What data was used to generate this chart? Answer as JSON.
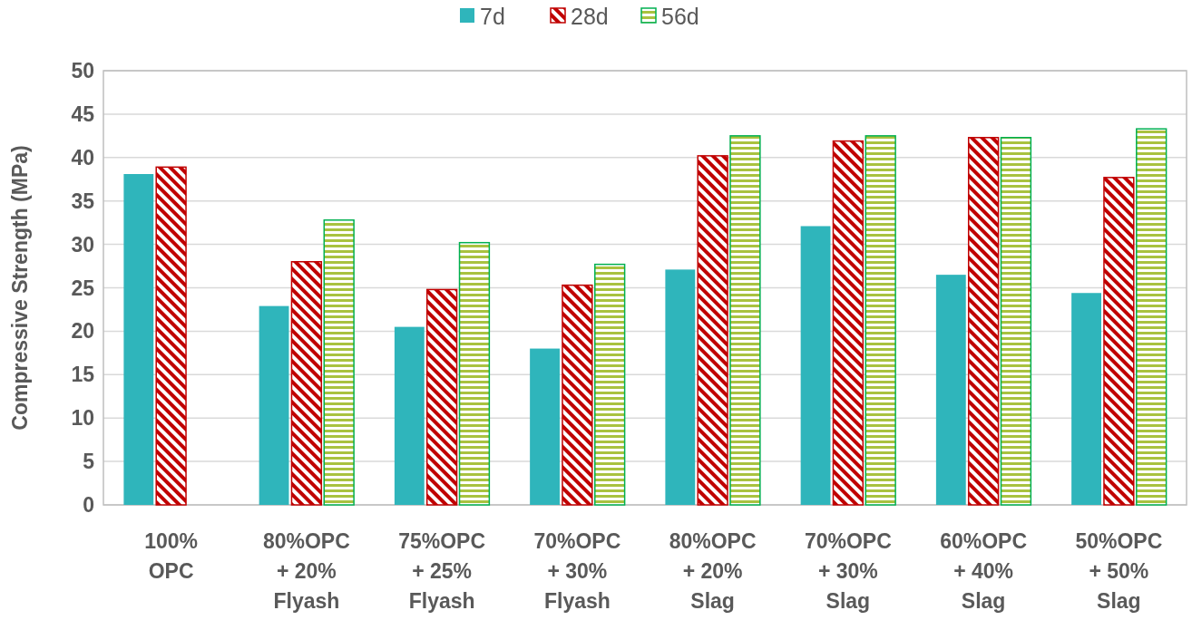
{
  "chart_data": {
    "type": "bar",
    "ylabel": "Compressive Strength (MPa)",
    "categories": [
      "100%\nOPC",
      "80%OPC\n+ 20%\nFlyash",
      "75%OPC\n+ 25%\nFlyash",
      "70%OPC\n+ 30%\nFlyash",
      "80%OPC\n+ 20%\nSlag",
      "70%OPC\n+ 30%\nSlag",
      "60%OPC\n+ 40%\nSlag",
      "50%OPC\n+ 50%\nSlag"
    ],
    "series": [
      {
        "name": "7d",
        "color": "#2fb5bb",
        "values": [
          38.1,
          22.9,
          20.5,
          18.0,
          27.1,
          32.1,
          26.5,
          24.4
        ]
      },
      {
        "name": "28d",
        "color": "#c00000",
        "values": [
          38.9,
          28.0,
          24.8,
          25.3,
          40.2,
          41.9,
          42.3,
          37.7
        ]
      },
      {
        "name": "56d",
        "color": "#00b050",
        "values": [
          null,
          32.8,
          30.2,
          27.7,
          42.5,
          42.5,
          42.3,
          43.3
        ]
      }
    ],
    "ylim": [
      0,
      50
    ],
    "yticks": [
      0,
      5,
      10,
      15,
      20,
      25,
      30,
      35,
      40,
      45,
      50
    ],
    "grid": "y",
    "legend": "top"
  }
}
